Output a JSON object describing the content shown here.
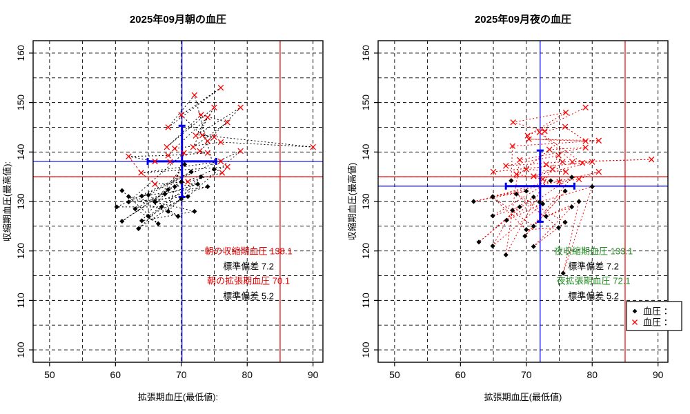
{
  "chart_data": [
    {
      "type": "scatter",
      "title": "2025年09月朝の血圧",
      "xlabel": "拡張期血圧(最低値):",
      "ylabel": "収縮期血圧(最高値):",
      "xlim": [
        47.5,
        91.5
      ],
      "ylim": [
        97.5,
        162.5
      ],
      "xticks": [
        50,
        60,
        70,
        80,
        90
      ],
      "yticks": [
        100,
        110,
        120,
        130,
        140,
        150,
        160
      ],
      "grid_step": 5,
      "grid": true,
      "mean_x": 70.1,
      "sd_x": 5.2,
      "mean_y": 138.1,
      "sd_y": 7.2,
      "ref_x": 85,
      "ref_y": 135,
      "mean_line_color": "#0000ee",
      "ref_line_color": "#e00000",
      "web_color": "#000000",
      "series": [
        {
          "name": "血圧 ：",
          "marker": "diamond",
          "color": "#000000",
          "points": [
            [
              61,
              132.2
            ],
            [
              66.5,
              125.5
            ],
            [
              63,
              128.5
            ],
            [
              70,
              134
            ],
            [
              61,
              126
            ],
            [
              68,
              132.4
            ],
            [
              64,
              126.1
            ],
            [
              72,
              128
            ],
            [
              66,
              129.9
            ],
            [
              62,
              131
            ],
            [
              69.5,
              127
            ],
            [
              65,
              131.3
            ],
            [
              71.5,
              136
            ],
            [
              60.2,
              128.9
            ],
            [
              67,
              128.9
            ],
            [
              63.5,
              124.5
            ],
            [
              70,
              130.5
            ],
            [
              65,
              127
            ],
            [
              73,
              135
            ],
            [
              68,
              128
            ],
            [
              62,
              129.9
            ],
            [
              71,
              131
            ],
            [
              64,
              131.1
            ],
            [
              74,
              133
            ],
            [
              66,
              130
            ],
            [
              70.5,
              137.5
            ],
            [
              67.5,
              131.5
            ],
            [
              72.5,
              133.5
            ],
            [
              69,
              133
            ],
            [
              75,
              136.5
            ]
          ]
        },
        {
          "name": "血圧 ：",
          "marker": "x",
          "color": "#ff0000",
          "points": [
            [
              72,
              151.5
            ],
            [
              68,
              145
            ],
            [
              76,
              153
            ],
            [
              70,
              147.5
            ],
            [
              74,
              142.2
            ],
            [
              79,
              149
            ],
            [
              72.2,
              143.3
            ],
            [
              75,
              149
            ],
            [
              67.8,
              141
            ],
            [
              73,
              147.5
            ],
            [
              77,
              146
            ],
            [
              71.8,
              141
            ],
            [
              74,
              147
            ],
            [
              69,
              140.7
            ],
            [
              76,
              142
            ],
            [
              90,
              141
            ],
            [
              73.2,
              143.4
            ],
            [
              75,
              143
            ],
            [
              72.8,
              140.2
            ],
            [
              79,
              140.2
            ],
            [
              74,
              139.8
            ],
            [
              70.4,
              139.8
            ],
            [
              68,
              139.3
            ],
            [
              62,
              139.1
            ],
            [
              66,
              138.1
            ],
            [
              68.3,
              138
            ],
            [
              76,
              138.1
            ],
            [
              63.9,
              135.8
            ],
            [
              77,
              137
            ],
            [
              76.2,
              135.8
            ],
            [
              71,
              134
            ],
            [
              66,
              133.5
            ]
          ]
        }
      ],
      "web_path": [
        [
          0,
          0
        ],
        [
          0,
          1
        ],
        [
          0,
          2
        ],
        [
          0,
          3
        ],
        [
          0,
          4
        ],
        [
          0,
          5
        ],
        [
          0,
          6
        ],
        [
          0,
          7
        ],
        [
          0,
          8
        ],
        [
          0,
          9
        ],
        [
          0,
          10
        ],
        [
          0,
          11
        ],
        [
          0,
          12
        ],
        [
          0,
          13
        ],
        [
          0,
          14
        ],
        [
          0,
          15
        ],
        [
          0,
          16
        ],
        [
          0,
          17
        ],
        [
          0,
          18
        ],
        [
          0,
          19
        ],
        [
          1,
          21
        ],
        [
          0,
          20
        ],
        [
          0,
          21
        ],
        [
          1,
          19
        ],
        [
          0,
          22
        ],
        [
          0,
          23
        ],
        [
          0,
          24
        ],
        [
          0,
          25
        ],
        [
          0,
          26
        ],
        [
          0,
          27
        ],
        [
          0,
          28
        ],
        [
          0,
          29
        ],
        [
          1,
          0
        ],
        [
          1,
          1
        ],
        [
          1,
          2
        ],
        [
          1,
          3
        ],
        [
          1,
          4
        ],
        [
          1,
          5
        ],
        [
          1,
          6
        ],
        [
          1,
          7
        ],
        [
          1,
          8
        ],
        [
          1,
          9
        ],
        [
          1,
          10
        ],
        [
          1,
          11
        ],
        [
          1,
          12
        ],
        [
          1,
          13
        ],
        [
          1,
          14
        ],
        [
          1,
          15
        ],
        [
          1,
          16
        ],
        [
          1,
          17
        ],
        [
          1,
          18
        ],
        [
          1,
          20
        ],
        [
          1,
          22
        ],
        [
          1,
          23
        ],
        [
          1,
          24
        ],
        [
          1,
          25
        ],
        [
          1,
          26
        ],
        [
          1,
          27
        ],
        [
          1,
          28
        ],
        [
          1,
          29
        ],
        [
          1,
          30
        ],
        [
          1,
          31
        ]
      ],
      "extra_lines": [
        {
          "color": "#e00000",
          "points": [
            [
              62,
              139.1
            ],
            [
              63.9,
              135.8
            ],
            [
              66,
              133.5
            ]
          ]
        }
      ],
      "annotations": [
        {
          "text": "朝の収縮期血圧 138.1",
          "color": "#e00000",
          "x": 80.2,
          "y": 119.9
        },
        {
          "text": "標準偏差 7.2",
          "color": "#000000",
          "x": 80.2,
          "y": 116.8
        },
        {
          "text": "朝の拡張期血圧 70.1",
          "color": "#e00000",
          "x": 80.2,
          "y": 113.9
        },
        {
          "text": "標準偏差 5.2",
          "color": "#000000",
          "x": 80.2,
          "y": 110.8
        }
      ],
      "legend": null
    },
    {
      "type": "scatter",
      "title": "2025年09月夜の血圧",
      "xlabel": "拡張期血圧(最低値)",
      "ylabel": "収縮期血圧(最高値)",
      "xlim": [
        47.5,
        91.5
      ],
      "ylim": [
        97.5,
        162.5
      ],
      "xticks": [
        50,
        60,
        70,
        80,
        90
      ],
      "yticks": [
        100,
        110,
        120,
        130,
        140,
        150,
        160
      ],
      "grid_step": 5,
      "grid": true,
      "mean_x": 72.1,
      "sd_x": 5.2,
      "mean_y": 133.1,
      "sd_y": 7.2,
      "ref_x": 85,
      "ref_y": 135,
      "mean_line_color": "#0000ee",
      "ref_line_color": "#e00000",
      "web_color": "#e60000",
      "series": [
        {
          "name": "血圧 ：",
          "marker": "diamond",
          "color": "#000000",
          "points": [
            [
              67.7,
              134.2
            ],
            [
              62,
              130
            ],
            [
              70,
              132.1
            ],
            [
              64.9,
              131
            ],
            [
              73.7,
              134.2
            ],
            [
              64.9,
              127.1
            ],
            [
              69,
              128.9
            ],
            [
              62.8,
              121.8
            ],
            [
              71.1,
              130.9
            ],
            [
              66.9,
              119.2
            ],
            [
              67.9,
              128.2
            ],
            [
              64.9,
              121
            ],
            [
              72.5,
              129.5
            ],
            [
              67,
              126.2
            ],
            [
              76.9,
              134.9
            ],
            [
              69.8,
              123
            ],
            [
              75.9,
              132.1
            ],
            [
              71.1,
              125
            ],
            [
              64.9,
              130.9
            ],
            [
              70,
              124.3
            ],
            [
              74.9,
              124.7
            ],
            [
              68.5,
              131.5
            ],
            [
              75.9,
              125.8
            ],
            [
              71.1,
              120.9
            ],
            [
              76.9,
              128.9
            ],
            [
              73,
              127
            ],
            [
              78,
              130
            ],
            [
              75.6,
              115.5
            ],
            [
              80,
              133
            ],
            [
              72,
              129.9
            ]
          ]
        },
        {
          "name": "血圧 ：",
          "marker": "x",
          "color": "#ff0000",
          "points": [
            [
              79,
              149
            ],
            [
              70.2,
              143.3
            ],
            [
              76,
              148
            ],
            [
              68,
              146
            ],
            [
              72.8,
              144.2
            ],
            [
              75.9,
              145.1
            ],
            [
              79,
              142.2
            ],
            [
              70.4,
              142.6
            ],
            [
              81,
              142.3
            ],
            [
              67.9,
              141.2
            ],
            [
              73.5,
              140.5
            ],
            [
              79,
              140.9
            ],
            [
              69,
              138.4
            ],
            [
              74.9,
              139.3
            ],
            [
              66.9,
              137.2
            ],
            [
              75.5,
              138
            ],
            [
              89,
              138.5
            ],
            [
              77,
              138
            ],
            [
              72,
              144
            ],
            [
              78.5,
              137.8
            ],
            [
              65,
              136
            ],
            [
              80,
              138
            ],
            [
              71.1,
              135.1
            ],
            [
              74,
              136.5
            ],
            [
              73,
              137.5
            ],
            [
              76,
              136
            ],
            [
              70,
              136.5
            ],
            [
              68.5,
              135.5
            ],
            [
              72.5,
              134.5
            ],
            [
              75,
              134
            ],
            [
              78,
              134.5
            ],
            [
              81,
              136
            ]
          ]
        }
      ],
      "web_path": [
        [
          1,
          0
        ],
        [
          1,
          1
        ],
        [
          1,
          2
        ],
        [
          1,
          3
        ],
        [
          1,
          4
        ],
        [
          1,
          5
        ],
        [
          1,
          6
        ],
        [
          1,
          7
        ],
        [
          1,
          8
        ],
        [
          1,
          9
        ],
        [
          0,
          0
        ],
        [
          1,
          10
        ],
        [
          1,
          11
        ],
        [
          1,
          12
        ],
        [
          0,
          9
        ],
        [
          1,
          13
        ],
        [
          1,
          14
        ],
        [
          1,
          15
        ],
        [
          1,
          16
        ],
        [
          1,
          17
        ],
        [
          1,
          18
        ],
        [
          1,
          19
        ],
        [
          1,
          20
        ],
        [
          1,
          21
        ],
        [
          1,
          22
        ],
        [
          1,
          23
        ],
        [
          1,
          24
        ],
        [
          1,
          25
        ],
        [
          1,
          26
        ],
        [
          1,
          27
        ],
        [
          1,
          28
        ],
        [
          1,
          29
        ],
        [
          1,
          30
        ],
        [
          1,
          31
        ],
        [
          0,
          1
        ],
        [
          0,
          2
        ],
        [
          0,
          3
        ],
        [
          0,
          4
        ],
        [
          0,
          5
        ],
        [
          0,
          6
        ],
        [
          0,
          7
        ],
        [
          0,
          8
        ],
        [
          0,
          10
        ],
        [
          0,
          11
        ],
        [
          0,
          12
        ],
        [
          0,
          13
        ],
        [
          0,
          14
        ],
        [
          0,
          15
        ],
        [
          0,
          16
        ],
        [
          0,
          17
        ],
        [
          0,
          18
        ],
        [
          0,
          19
        ],
        [
          0,
          20
        ],
        [
          0,
          21
        ],
        [
          0,
          22
        ],
        [
          0,
          23
        ],
        [
          0,
          24
        ],
        [
          0,
          25
        ],
        [
          0,
          26
        ],
        [
          0,
          27
        ],
        [
          0,
          28
        ],
        [
          0,
          29
        ]
      ],
      "extra_lines": [],
      "annotations": [
        {
          "text": "夜収縮期血圧 133.1",
          "color": "#228B22",
          "x": 80.2,
          "y": 119.9
        },
        {
          "text": "標準偏差 7.2",
          "color": "#000000",
          "x": 80.2,
          "y": 116.8
        },
        {
          "text": "夜拡張期血圧 72.1",
          "color": "#228B22",
          "x": 80.2,
          "y": 113.9
        },
        {
          "text": "標準偏差 5.2",
          "color": "#000000",
          "x": 80.2,
          "y": 110.8
        }
      ],
      "legend": {
        "labels": [
          "血圧 ：",
          "血圧 ："
        ]
      }
    }
  ]
}
